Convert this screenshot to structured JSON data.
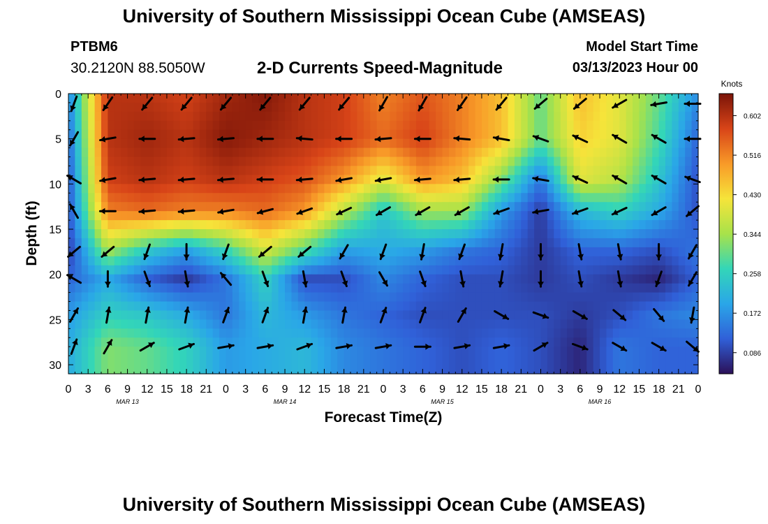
{
  "header": {
    "title": "University of Southern Mississippi Ocean Cube (AMSEAS)",
    "station_id": "PTBM6",
    "station_coords": "30.2120N  88.5050W",
    "plot_title": "2-D Currents Speed-Magnitude",
    "model_start_label": "Model Start Time",
    "model_start_value": "03/13/2023 Hour 00"
  },
  "footer": {
    "title": "University of Southern Mississippi Ocean Cube (AMSEAS)"
  },
  "chart_data": {
    "type": "heatmap",
    "xlabel": "Forecast Time(Z)",
    "ylabel": "Depth (ft)",
    "x_tick_labels": [
      "0",
      "3",
      "6",
      "9",
      "12",
      "15",
      "18",
      "21",
      "0",
      "3",
      "6",
      "9",
      "12",
      "15",
      "18",
      "21",
      "0",
      "3",
      "6",
      "9",
      "12",
      "15",
      "18",
      "21",
      "0",
      "3",
      "6",
      "9",
      "12",
      "15",
      "18",
      "21",
      "0"
    ],
    "day_labels": [
      "MAR 13",
      "MAR 14",
      "MAR 15",
      "MAR 16"
    ],
    "ylim": [
      0,
      31
    ],
    "y_ticks": [
      0,
      5,
      10,
      15,
      20,
      25,
      30
    ],
    "colorbar": {
      "unit": "Knots",
      "ticks": [
        0.602,
        0.516,
        0.43,
        0.344,
        0.258,
        0.172,
        0.086
      ],
      "range": [
        0.04,
        0.65
      ],
      "colors": [
        "#2b1058",
        "#3060d8",
        "#2aa6e8",
        "#33d6b8",
        "#a8e24a",
        "#f6e43a",
        "#f89a28",
        "#d84418",
        "#7a1408"
      ]
    },
    "depth_levels": [
      0.5,
      5,
      9.5,
      13,
      17.5,
      20.5,
      24.5,
      28
    ],
    "time_hours": [
      0,
      6,
      12,
      18,
      24,
      30,
      36,
      42,
      48,
      54,
      60,
      66,
      72,
      78,
      84,
      90,
      96
    ],
    "speed_grid_knots": [
      [
        0.15,
        0.6,
        0.6,
        0.58,
        0.62,
        0.64,
        0.6,
        0.58,
        0.52,
        0.56,
        0.52,
        0.46,
        0.3,
        0.46,
        0.4,
        0.3,
        0.16
      ],
      [
        0.12,
        0.6,
        0.62,
        0.6,
        0.64,
        0.62,
        0.6,
        0.58,
        0.54,
        0.58,
        0.52,
        0.46,
        0.3,
        0.44,
        0.4,
        0.28,
        0.12
      ],
      [
        0.1,
        0.58,
        0.6,
        0.58,
        0.6,
        0.58,
        0.56,
        0.5,
        0.4,
        0.5,
        0.46,
        0.32,
        0.14,
        0.4,
        0.36,
        0.24,
        0.1
      ],
      [
        0.1,
        0.52,
        0.54,
        0.52,
        0.52,
        0.54,
        0.5,
        0.36,
        0.24,
        0.34,
        0.34,
        0.18,
        0.08,
        0.22,
        0.26,
        0.2,
        0.1
      ],
      [
        0.08,
        0.34,
        0.24,
        0.18,
        0.26,
        0.38,
        0.28,
        0.18,
        0.2,
        0.18,
        0.14,
        0.12,
        0.08,
        0.12,
        0.12,
        0.1,
        0.14
      ],
      [
        0.12,
        0.2,
        0.12,
        0.08,
        0.14,
        0.26,
        0.1,
        0.1,
        0.16,
        0.12,
        0.1,
        0.1,
        0.08,
        0.1,
        0.08,
        0.06,
        0.12
      ],
      [
        0.18,
        0.26,
        0.24,
        0.2,
        0.14,
        0.22,
        0.18,
        0.14,
        0.12,
        0.1,
        0.1,
        0.1,
        0.1,
        0.08,
        0.1,
        0.14,
        0.16
      ],
      [
        0.2,
        0.32,
        0.3,
        0.26,
        0.18,
        0.2,
        0.22,
        0.16,
        0.14,
        0.12,
        0.1,
        0.12,
        0.1,
        0.06,
        0.14,
        0.12,
        0.12
      ]
    ],
    "current_direction_deg_grid": [
      [
        200,
        215,
        220,
        220,
        220,
        220,
        220,
        220,
        210,
        210,
        215,
        220,
        230,
        230,
        240,
        260,
        270
      ],
      [
        210,
        260,
        270,
        265,
        265,
        270,
        275,
        270,
        265,
        270,
        275,
        280,
        290,
        295,
        300,
        300,
        270
      ],
      [
        300,
        260,
        265,
        265,
        265,
        270,
        265,
        260,
        260,
        265,
        265,
        270,
        280,
        295,
        300,
        300,
        290
      ],
      [
        330,
        270,
        265,
        265,
        260,
        255,
        250,
        245,
        240,
        240,
        240,
        250,
        260,
        250,
        245,
        240,
        230
      ],
      [
        230,
        230,
        200,
        180,
        200,
        230,
        230,
        210,
        200,
        190,
        200,
        190,
        180,
        170,
        170,
        180,
        210
      ],
      [
        300,
        180,
        160,
        170,
        320,
        160,
        170,
        160,
        150,
        160,
        170,
        190,
        180,
        170,
        170,
        200,
        210
      ],
      [
        30,
        10,
        10,
        10,
        20,
        20,
        10,
        10,
        20,
        20,
        30,
        120,
        110,
        120,
        130,
        140,
        190
      ],
      [
        20,
        30,
        60,
        70,
        80,
        80,
        70,
        80,
        80,
        90,
        80,
        80,
        60,
        110,
        120,
        120,
        130
      ]
    ]
  }
}
